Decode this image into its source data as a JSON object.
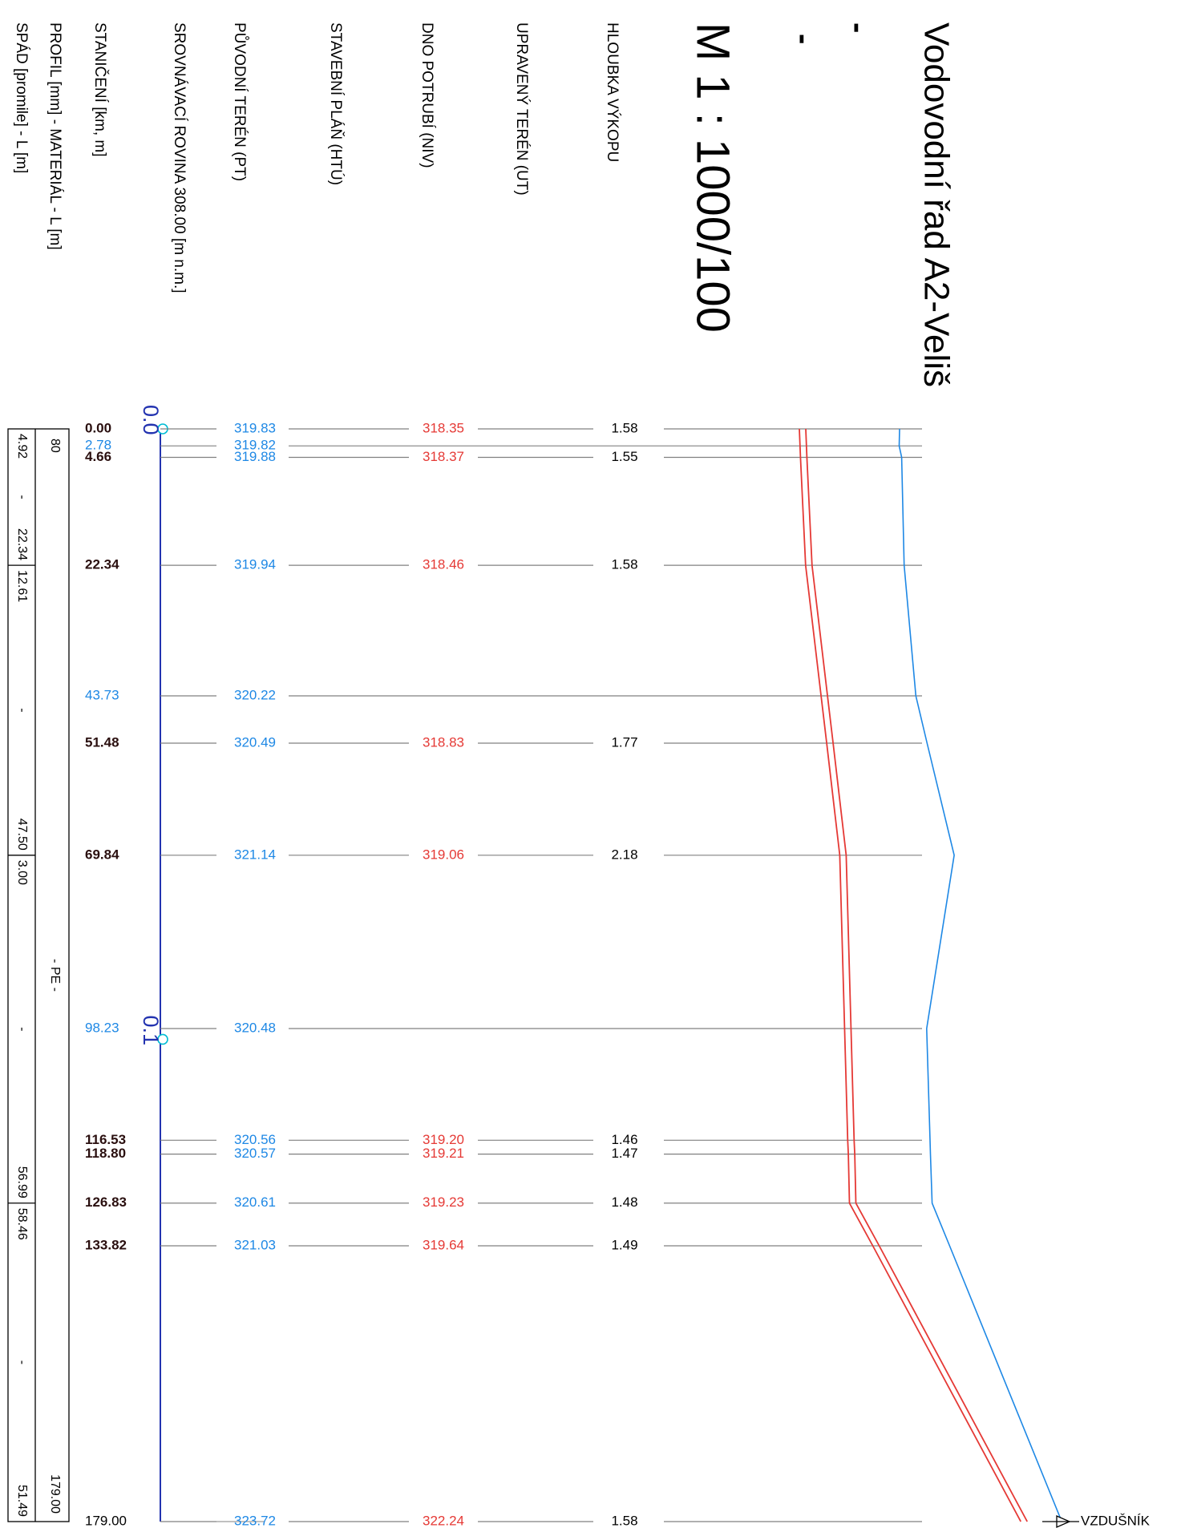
{
  "title": "Vodovodní řad A2-Veliš",
  "title_dash_1": "-",
  "title_dash_2": "-",
  "scale": "M 1 : 1000/100",
  "row_labels": {
    "hloubka": "HLOUBKA VÝKOPU",
    "ut": "UPRAVENÝ TERÉN (UT)",
    "niv": "DNO POTRUBÍ (NIV)",
    "htu": "STAVEBNÍ PLÁŇ  (HTÚ)",
    "pt": "PŮVODNÍ TERÉN  (PT)",
    "srov": "SROVNÁVACÍ ROVINA   308.00 [m n.m.]",
    "stan": "STANIČENÍ [km, m]",
    "profil": "PROFIL [mm] - MATERIÁL - L [m]",
    "spad": "SPÁD [promile] - L [m]"
  },
  "km_marks": [
    "0.0",
    "0.1"
  ],
  "vzdusnik_label": "VZDUŠNÍK",
  "material_label": "- PE -",
  "profile_values": {
    "dn": "80",
    "total_length": "179.00"
  },
  "spad_segments": [
    {
      "slope": "4.92",
      "dash": "-",
      "length": "22.34"
    },
    {
      "slope": "12.61",
      "dash": "-",
      "length": "47.50"
    },
    {
      "slope": "3.00",
      "dash": "-",
      "length": "56.99"
    },
    {
      "slope": "58.46",
      "dash": "-",
      "length": "51.49"
    }
  ],
  "colors": {
    "terrain": "#1e88e5",
    "pipe": "#e53935",
    "axis": "#2333b0",
    "station_bold": "#2a0f0f",
    "grid": "#808080",
    "km_circle": "#00bcd4"
  },
  "chart_data": {
    "type": "line",
    "xlabel": "STANIČENÍ [km, m]",
    "ylabel": "",
    "datum": 308.0,
    "stations": [
      {
        "km": "0.00",
        "station": 0.0,
        "pt": "319.83",
        "niv": "318.35",
        "depth": "1.58",
        "style": "full"
      },
      {
        "km": "2.78",
        "station": 2.78,
        "pt": "319.82",
        "niv": "",
        "depth": "",
        "style": "terrain"
      },
      {
        "km": "4.66",
        "station": 4.66,
        "pt": "319.88",
        "niv": "318.37",
        "depth": "1.55",
        "style": "full"
      },
      {
        "km": "22.34",
        "station": 22.34,
        "pt": "319.94",
        "niv": "318.46",
        "depth": "1.58",
        "style": "full"
      },
      {
        "km": "43.73",
        "station": 43.73,
        "pt": "320.22",
        "niv": "",
        "depth": "",
        "style": "terrain"
      },
      {
        "km": "51.48",
        "station": 51.48,
        "pt": "320.49",
        "niv": "318.83",
        "depth": "1.77",
        "style": "full"
      },
      {
        "km": "69.84",
        "station": 69.84,
        "pt": "321.14",
        "niv": "319.06",
        "depth": "2.18",
        "style": "full"
      },
      {
        "km": "98.23",
        "station": 98.23,
        "pt": "320.48",
        "niv": "",
        "depth": "",
        "style": "terrain"
      },
      {
        "km": "116.53",
        "station": 116.53,
        "pt": "320.56",
        "niv": "319.20",
        "depth": "1.46",
        "style": "full"
      },
      {
        "km": "118.80",
        "station": 118.8,
        "pt": "320.57",
        "niv": "319.21",
        "depth": "1.47",
        "style": "full"
      },
      {
        "km": "126.83",
        "station": 126.83,
        "pt": "320.61",
        "niv": "319.23",
        "depth": "1.48",
        "style": "full"
      },
      {
        "km": "133.82",
        "station": 133.82,
        "pt": "321.03",
        "niv": "319.64",
        "depth": "1.49",
        "style": "full"
      },
      {
        "km": "179.00",
        "station": 179.0,
        "pt": "323.72",
        "niv": "322.24",
        "depth": "1.58",
        "style": "end"
      }
    ],
    "km_markers": [
      {
        "label": "0.0",
        "station": 0.0
      },
      {
        "label": "0.1",
        "station": 100.0
      }
    ]
  }
}
